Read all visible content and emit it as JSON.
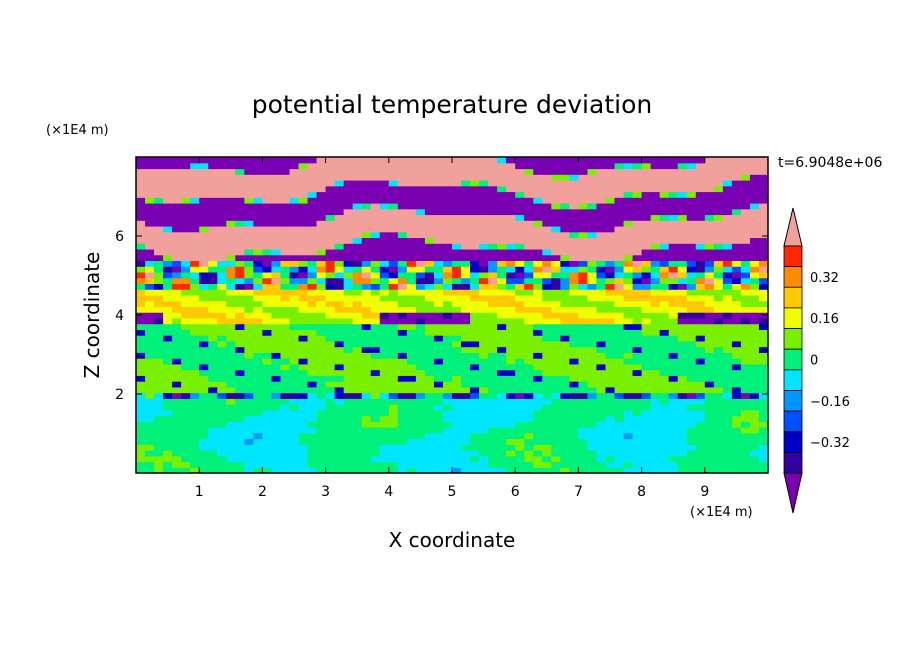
{
  "chart_data": {
    "type": "heatmap",
    "title": "potential temperature deviation",
    "xlabel": "X coordinate",
    "ylabel": "Z coordinate",
    "x_unit": "(×1E4 m)",
    "y_unit": "(×1E4 m)",
    "time_label": "t=6.9048e+06",
    "xlim": [
      0,
      10
    ],
    "ylim": [
      0,
      8
    ],
    "x_ticks": [
      "1",
      "2",
      "3",
      "4",
      "5",
      "6",
      "7",
      "8",
      "9"
    ],
    "y_ticks": [
      "2",
      "4",
      "6"
    ],
    "colorbar": {
      "levels": [
        -0.48,
        -0.4,
        -0.32,
        -0.24,
        -0.16,
        -0.08,
        0,
        0.08,
        0.16,
        0.24,
        0.32,
        0.4,
        0.48
      ],
      "labels": [
        "0.32",
        "0.16",
        "0",
        "−0.16",
        "−0.32"
      ],
      "label_values": [
        0.32,
        0.16,
        0,
        -0.16,
        -0.32
      ],
      "colors": [
        "#7a00b4",
        "#3000a0",
        "#0000c8",
        "#0050ff",
        "#0096ff",
        "#00e6ff",
        "#00f07a",
        "#78f000",
        "#f0ff00",
        "#ffc800",
        "#ff8c00",
        "#ff2800",
        "#f2a09c"
      ]
    },
    "layers": [
      {
        "z": [
          0,
          1.9
        ],
        "value": 0.0,
        "note": "boundary layer, mixed green / green-blue"
      },
      {
        "z": [
          1.9,
          2.0
        ],
        "value": -0.24,
        "note": "thin band"
      },
      {
        "z": [
          2.0,
          3.8
        ],
        "value": 0.04,
        "note": "green"
      },
      {
        "z": [
          3.8,
          4.7
        ],
        "value": 0.16,
        "note": "yellow"
      },
      {
        "z": [
          4.7,
          5.5
        ],
        "value": 0.0,
        "note": "mixed"
      },
      {
        "z": [
          5.5,
          8.0
        ],
        "value": 0.4,
        "note": "alternating pink / purple streaks"
      }
    ]
  }
}
